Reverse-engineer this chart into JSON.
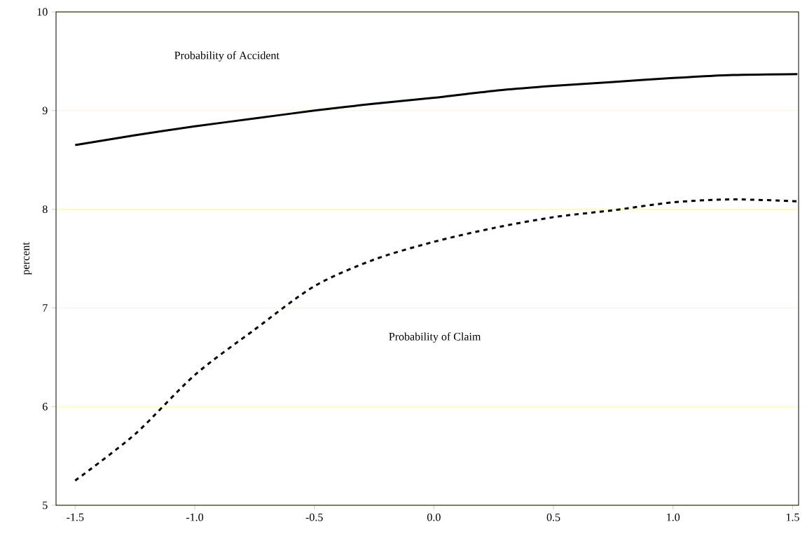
{
  "chart_data": {
    "type": "line",
    "ylabel": "percent",
    "x": [
      -1.5,
      -1.25,
      -1.0,
      -0.75,
      -0.5,
      -0.25,
      0.0,
      0.25,
      0.5,
      0.75,
      1.0,
      1.25,
      1.52
    ],
    "series": [
      {
        "color": "#000000",
        "line_style": "solid",
        "values": [
          8.65,
          8.75,
          8.84,
          8.92,
          9.0,
          9.07,
          9.13,
          9.2,
          9.25,
          9.29,
          9.33,
          9.36,
          9.37
        ]
      },
      {
        "color": "#000000",
        "line_style": "dashed",
        "values": [
          5.25,
          5.72,
          6.32,
          6.78,
          7.22,
          7.49,
          7.67,
          7.81,
          7.92,
          7.99,
          8.07,
          8.1,
          8.08
        ]
      }
    ],
    "xlim": [
      -1.58,
      1.525
    ],
    "ylim": [
      5,
      10
    ],
    "xticks": [
      {
        "value": -1.5,
        "label": "-1.5"
      },
      {
        "value": -1.0,
        "label": "-1.0"
      },
      {
        "value": -0.5,
        "label": "-0.5"
      },
      {
        "value": 0.0,
        "label": "0.0"
      },
      {
        "value": 0.5,
        "label": "0.5"
      },
      {
        "value": 1.0,
        "label": "1.0"
      },
      {
        "value": 1.5,
        "label": "1.5"
      }
    ],
    "yticks": [
      5,
      6,
      7,
      8,
      9,
      10
    ],
    "annotations": [
      "Probability of Accident",
      "Probability of Claim"
    ],
    "grid": "y"
  }
}
